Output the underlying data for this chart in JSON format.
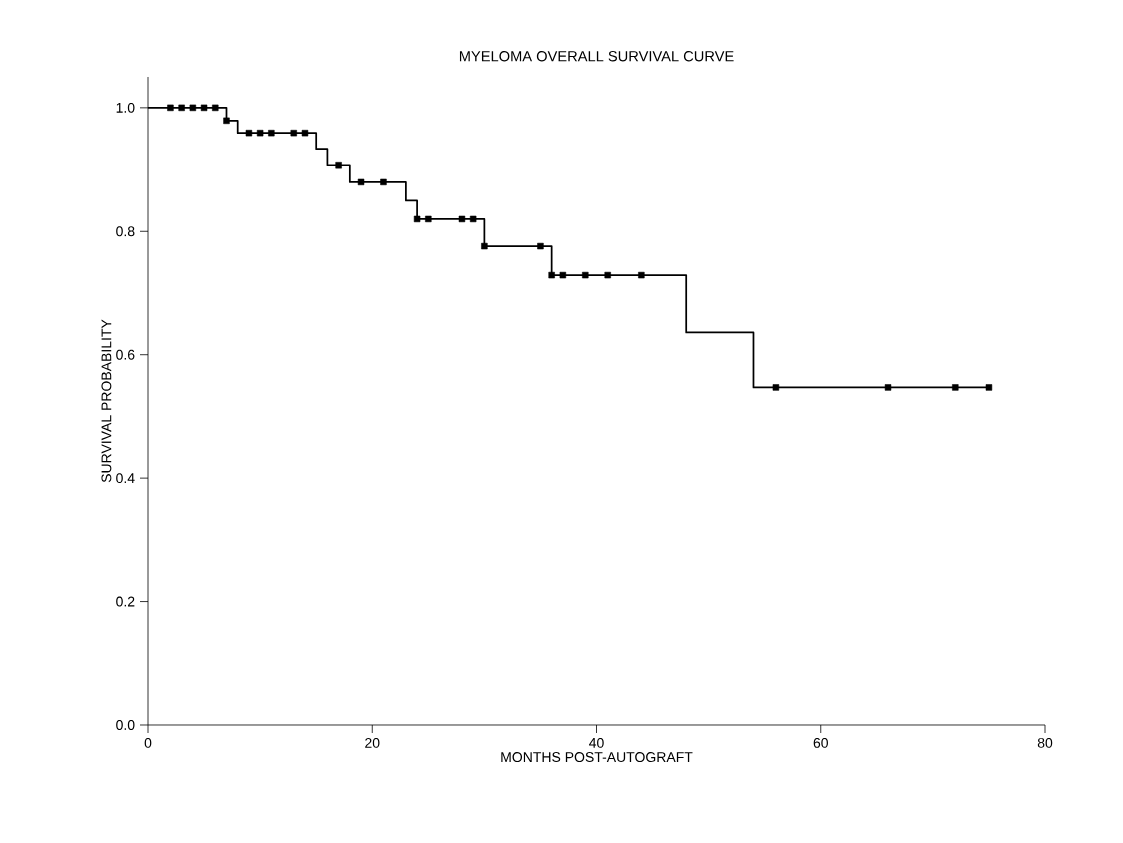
{
  "chart_data": {
    "type": "step",
    "title": "MYELOMA OVERALL SURVIVAL CURVE",
    "xlabel": "MONTHS POST-AUTOGRAFT",
    "ylabel": "SURVIVAL PROBABILITY",
    "xlim": [
      0,
      80
    ],
    "ylim": [
      0,
      1.05
    ],
    "xticks": [
      0,
      20,
      40,
      60,
      80
    ],
    "yticks": [
      {
        "value": 0,
        "label": "0.0"
      },
      {
        "value": 0.2,
        "label": "0.2"
      },
      {
        "value": 0.4,
        "label": "0.4"
      },
      {
        "value": 0.6,
        "label": "0.6"
      },
      {
        "value": 0.8,
        "label": "0.8"
      },
      {
        "value": 1.0,
        "label": "1.0"
      }
    ],
    "grid": false,
    "series": [
      {
        "color": "#000000",
        "x": [
          0,
          7,
          8,
          15,
          16,
          18,
          23,
          24,
          30,
          36,
          48,
          54,
          75
        ],
        "values": [
          1.0,
          0.979,
          0.959,
          0.933,
          0.907,
          0.88,
          0.85,
          0.82,
          0.776,
          0.729,
          0.636,
          0.547,
          0.547
        ]
      },
      {
        "type": "scatter",
        "marker": "square",
        "color": "#000000",
        "x": [
          2,
          3,
          4,
          5,
          6,
          7,
          9,
          10,
          11,
          13,
          14,
          17,
          19,
          21,
          24,
          25,
          28,
          29,
          30,
          35,
          36,
          37,
          39,
          41,
          44,
          56,
          66,
          72,
          75
        ],
        "values": [
          1.0,
          1.0,
          1.0,
          1.0,
          1.0,
          0.979,
          0.959,
          0.959,
          0.959,
          0.959,
          0.959,
          0.907,
          0.88,
          0.88,
          0.82,
          0.82,
          0.82,
          0.82,
          0.776,
          0.776,
          0.729,
          0.729,
          0.729,
          0.729,
          0.729,
          0.547,
          0.547,
          0.547,
          0.547
        ]
      }
    ]
  }
}
